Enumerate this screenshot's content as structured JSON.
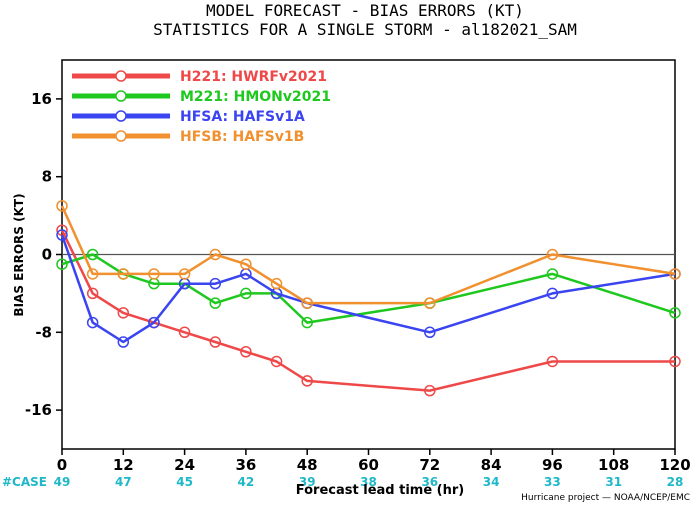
{
  "chart_data": {
    "type": "line",
    "title": "MODEL FORECAST - BIAS ERRORS (KT)",
    "subtitle": "STATISTICS FOR A SINGLE STORM - al182021_SAM",
    "xlabel": "Forecast lead time (hr)",
    "ylabel": "BIAS ERRORS (KT)",
    "xlim": [
      0,
      120
    ],
    "ylim": [
      -20,
      20
    ],
    "x_ticks": [
      0,
      12,
      24,
      36,
      48,
      60,
      72,
      84,
      96,
      108,
      120
    ],
    "y_ticks": [
      -16,
      -8,
      0,
      8,
      16
    ],
    "zero_line": true,
    "legend_position": "top-left",
    "case_label": "#CASE",
    "case_counts": [
      "49",
      "47",
      "45",
      "42",
      "39",
      "38",
      "36",
      "34",
      "33",
      "31",
      "28"
    ],
    "credit": "Hurricane project — NOAA/NCEP/EMC",
    "series": [
      {
        "name": "H221: HWRFv2021",
        "key": "H221",
        "desc": "HWRFv2021",
        "color": "#ef4848",
        "points": [
          [
            0,
            2.5
          ],
          [
            6,
            -4
          ],
          [
            12,
            -6
          ],
          [
            18,
            -7
          ],
          [
            24,
            -8
          ],
          [
            30,
            -9
          ],
          [
            36,
            -10
          ],
          [
            42,
            -11
          ],
          [
            48,
            -13
          ],
          [
            72,
            -14
          ],
          [
            96,
            -11
          ],
          [
            120,
            -11
          ]
        ]
      },
      {
        "name": "M221: HMONv2021",
        "key": "M221",
        "desc": "HMONv2021",
        "color": "#1ec81e",
        "points": [
          [
            0,
            -1
          ],
          [
            6,
            0
          ],
          [
            12,
            -2
          ],
          [
            18,
            -3
          ],
          [
            24,
            -3
          ],
          [
            30,
            -5
          ],
          [
            36,
            -4
          ],
          [
            42,
            -4
          ],
          [
            48,
            -7
          ],
          [
            72,
            -5
          ],
          [
            96,
            -2
          ],
          [
            120,
            -6
          ]
        ]
      },
      {
        "name": "HFSA: HAFSv1A",
        "key": "HFSA",
        "desc": "HAFSv1A",
        "color": "#3a44f0",
        "points": [
          [
            0,
            2
          ],
          [
            6,
            -7
          ],
          [
            12,
            -9
          ],
          [
            18,
            -7
          ],
          [
            24,
            -3
          ],
          [
            30,
            -3
          ],
          [
            36,
            -2
          ],
          [
            42,
            -4
          ],
          [
            48,
            -5
          ],
          [
            72,
            -8
          ],
          [
            96,
            -4
          ],
          [
            120,
            -2
          ]
        ]
      },
      {
        "name": "HFSB: HAFSv1B",
        "key": "HFSB",
        "desc": "HAFSv1B",
        "color": "#f0902e",
        "points": [
          [
            0,
            5
          ],
          [
            6,
            -2
          ],
          [
            12,
            -2
          ],
          [
            18,
            -2
          ],
          [
            24,
            -2
          ],
          [
            30,
            0
          ],
          [
            36,
            -1
          ],
          [
            42,
            -3
          ],
          [
            48,
            -5
          ],
          [
            72,
            -5
          ],
          [
            96,
            0
          ],
          [
            120,
            -2
          ]
        ]
      }
    ]
  }
}
